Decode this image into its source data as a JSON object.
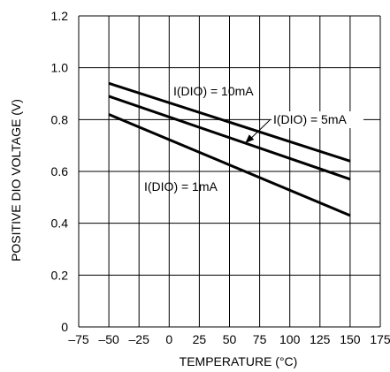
{
  "chart_data": {
    "type": "line",
    "title": "",
    "xlabel": "TEMPERATURE (°C)",
    "ylabel": "POSITIVE DIO VOLTAGE (V)",
    "xlim": [
      -75,
      175
    ],
    "ylim": [
      0,
      1.2
    ],
    "xticks": [
      -75,
      -50,
      -25,
      0,
      25,
      50,
      75,
      100,
      125,
      150,
      175
    ],
    "xtick_labels": [
      "–75",
      "–50",
      "–25",
      "0",
      "25",
      "50",
      "75",
      "100",
      "125",
      "150",
      "175"
    ],
    "yticks": [
      0,
      0.2,
      0.4,
      0.6,
      0.8,
      1.0,
      1.2
    ],
    "ytick_labels": [
      "0",
      "0.2",
      "0.4",
      "0.6",
      "0.8",
      "1.0",
      "1.2"
    ],
    "grid": true,
    "series": [
      {
        "name": "I(DIO) = 10mA",
        "x": [
          -50,
          150
        ],
        "y": [
          0.94,
          0.64
        ]
      },
      {
        "name": "I(DIO) = 5mA",
        "x": [
          -50,
          150
        ],
        "y": [
          0.89,
          0.57
        ]
      },
      {
        "name": "I(DIO) = 1mA",
        "x": [
          -50,
          150
        ],
        "y": [
          0.82,
          0.43
        ]
      }
    ],
    "annotations": [
      {
        "text": "I(DIO) = 10mA",
        "series": 0
      },
      {
        "text": "I(DIO) = 5mA",
        "series": 1,
        "arrow_to_x": 63
      },
      {
        "text": "I(DIO) = 1mA",
        "series": 2
      }
    ]
  }
}
